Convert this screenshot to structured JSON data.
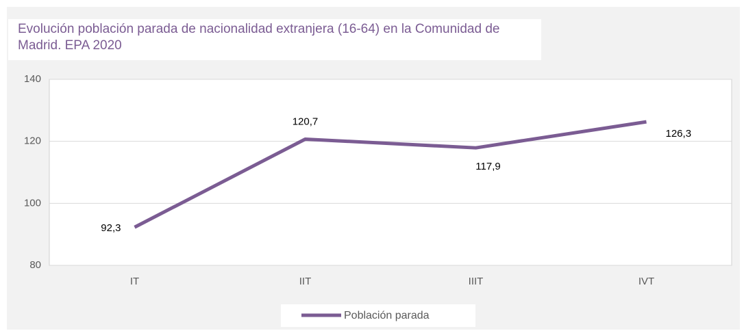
{
  "chart_data": {
    "type": "line",
    "title": "Evolución  población parada de nacionalidad  extranjera  (16-64)  en la Comunidad de Madrid.  EPA 2020",
    "categories": [
      "IT",
      "IIT",
      "IIIT",
      "IVT"
    ],
    "series": [
      {
        "name": "Población parada",
        "color": "#7b5c93",
        "values": [
          92.3,
          120.7,
          117.9,
          126.3
        ],
        "value_labels": [
          "92,3",
          "120,7",
          "117,9",
          "126,3"
        ]
      }
    ],
    "ylim": [
      80,
      140
    ],
    "yticks": [
      80,
      100,
      120,
      140
    ],
    "grid": true,
    "legend": "bottom"
  }
}
